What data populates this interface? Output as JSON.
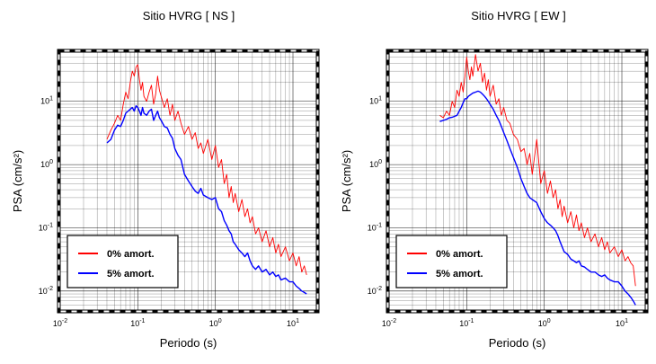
{
  "chart_data": [
    {
      "type": "line",
      "title": "Sitio HVRG [ NS ]",
      "xlabel": "Periodo (s)",
      "ylabel": "PSA (cm/s²)",
      "xscale": "log",
      "yscale": "log",
      "xlim": [
        0.01,
        20
      ],
      "ylim": [
        0.005,
        60
      ],
      "grid": true,
      "legend_position": "bottom-left",
      "x_ticks": [
        {
          "value": 0.01,
          "mantissa": "10",
          "exp": "-2"
        },
        {
          "value": 0.1,
          "mantissa": "10",
          "exp": "-1"
        },
        {
          "value": 1,
          "mantissa": "10",
          "exp": "0"
        },
        {
          "value": 10,
          "mantissa": "10",
          "exp": "1"
        }
      ],
      "y_ticks": [
        {
          "value": 0.01,
          "mantissa": "10",
          "exp": "-2"
        },
        {
          "value": 0.1,
          "mantissa": "10",
          "exp": "-1"
        },
        {
          "value": 1,
          "mantissa": "10",
          "exp": "0"
        },
        {
          "value": 10,
          "mantissa": "10",
          "exp": "1"
        }
      ],
      "series": [
        {
          "name": "0% amort.",
          "color": "#ff0000",
          "x": [
            0.04,
            0.045,
            0.05,
            0.055,
            0.06,
            0.065,
            0.07,
            0.075,
            0.08,
            0.085,
            0.09,
            0.095,
            0.1,
            0.105,
            0.11,
            0.115,
            0.12,
            0.13,
            0.14,
            0.15,
            0.16,
            0.17,
            0.18,
            0.19,
            0.2,
            0.22,
            0.24,
            0.26,
            0.28,
            0.3,
            0.33,
            0.36,
            0.4,
            0.45,
            0.5,
            0.55,
            0.6,
            0.65,
            0.7,
            0.8,
            0.9,
            1.0,
            1.1,
            1.2,
            1.3,
            1.4,
            1.5,
            1.6,
            1.7,
            1.8,
            2.0,
            2.2,
            2.4,
            2.6,
            2.8,
            3.0,
            3.3,
            3.6,
            4.0,
            4.5,
            5.0,
            5.5,
            6.0,
            6.5,
            7.0,
            8.0,
            9.0,
            10.0,
            11.0,
            12.0,
            13.0,
            14.0,
            15.0
          ],
          "y": [
            2.5,
            3.5,
            4.5,
            6.0,
            5.0,
            9.0,
            14.0,
            11.0,
            20.0,
            30.0,
            25.0,
            35.0,
            38.0,
            22.0,
            15.0,
            20.0,
            12.0,
            10.0,
            14.0,
            18.0,
            9.0,
            13.0,
            25.0,
            15.0,
            12.0,
            8.0,
            11.0,
            6.0,
            9.0,
            5.0,
            7.0,
            4.5,
            3.0,
            4.0,
            2.5,
            3.2,
            1.8,
            2.2,
            1.5,
            2.5,
            1.2,
            2.0,
            0.9,
            1.2,
            0.5,
            0.7,
            0.3,
            0.45,
            0.25,
            0.35,
            0.18,
            0.28,
            0.15,
            0.2,
            0.12,
            0.15,
            0.08,
            0.1,
            0.06,
            0.09,
            0.05,
            0.07,
            0.04,
            0.055,
            0.035,
            0.05,
            0.03,
            0.04,
            0.025,
            0.035,
            0.02,
            0.025,
            0.018
          ]
        },
        {
          "name": "5% amort.",
          "color": "#0000ff",
          "x": [
            0.04,
            0.045,
            0.05,
            0.055,
            0.06,
            0.065,
            0.07,
            0.075,
            0.08,
            0.085,
            0.09,
            0.095,
            0.1,
            0.105,
            0.11,
            0.115,
            0.12,
            0.13,
            0.14,
            0.15,
            0.16,
            0.17,
            0.18,
            0.19,
            0.2,
            0.22,
            0.24,
            0.26,
            0.28,
            0.3,
            0.33,
            0.36,
            0.4,
            0.45,
            0.5,
            0.55,
            0.6,
            0.65,
            0.7,
            0.8,
            0.9,
            1.0,
            1.1,
            1.2,
            1.3,
            1.4,
            1.5,
            1.6,
            1.7,
            1.8,
            2.0,
            2.2,
            2.4,
            2.6,
            2.8,
            3.0,
            3.3,
            3.6,
            4.0,
            4.5,
            5.0,
            5.5,
            6.0,
            6.5,
            7.0,
            8.0,
            9.0,
            10.0,
            11.0,
            12.0,
            13.0,
            14.0,
            15.0
          ],
          "y": [
            2.2,
            2.5,
            3.5,
            4.2,
            4.0,
            5.0,
            6.5,
            7.0,
            7.5,
            8.0,
            7.0,
            8.5,
            8.0,
            7.0,
            6.0,
            8.0,
            6.5,
            6.0,
            7.0,
            7.5,
            5.0,
            6.0,
            7.0,
            5.5,
            5.0,
            4.0,
            3.8,
            3.0,
            2.6,
            1.8,
            1.4,
            1.2,
            0.7,
            0.55,
            0.45,
            0.38,
            0.35,
            0.42,
            0.33,
            0.3,
            0.28,
            0.3,
            0.2,
            0.18,
            0.13,
            0.11,
            0.09,
            0.08,
            0.06,
            0.055,
            0.045,
            0.04,
            0.035,
            0.04,
            0.03,
            0.025,
            0.022,
            0.025,
            0.02,
            0.022,
            0.018,
            0.02,
            0.017,
            0.018,
            0.015,
            0.016,
            0.014,
            0.014,
            0.012,
            0.011,
            0.01,
            0.0095,
            0.009
          ]
        }
      ]
    },
    {
      "type": "line",
      "title": "Sitio HVRG [ EW ]",
      "xlabel": "Periodo (s)",
      "ylabel": "PSA (cm/s²)",
      "xscale": "log",
      "yscale": "log",
      "xlim": [
        0.01,
        20
      ],
      "ylim": [
        0.005,
        60
      ],
      "grid": true,
      "legend_position": "bottom-left",
      "x_ticks": [
        {
          "value": 0.01,
          "mantissa": "10",
          "exp": "-2"
        },
        {
          "value": 0.1,
          "mantissa": "10",
          "exp": "-1"
        },
        {
          "value": 1,
          "mantissa": "10",
          "exp": "0"
        },
        {
          "value": 10,
          "mantissa": "10",
          "exp": "1"
        }
      ],
      "y_ticks": [
        {
          "value": 0.01,
          "mantissa": "10",
          "exp": "-2"
        },
        {
          "value": 0.1,
          "mantissa": "10",
          "exp": "-1"
        },
        {
          "value": 1,
          "mantissa": "10",
          "exp": "0"
        },
        {
          "value": 10,
          "mantissa": "10",
          "exp": "1"
        }
      ],
      "series": [
        {
          "name": "0% amort.",
          "color": "#ff0000",
          "x": [
            0.045,
            0.05,
            0.055,
            0.06,
            0.065,
            0.07,
            0.075,
            0.08,
            0.085,
            0.09,
            0.095,
            0.1,
            0.105,
            0.11,
            0.115,
            0.12,
            0.13,
            0.14,
            0.15,
            0.16,
            0.17,
            0.18,
            0.19,
            0.2,
            0.22,
            0.24,
            0.26,
            0.28,
            0.3,
            0.33,
            0.36,
            0.4,
            0.45,
            0.5,
            0.55,
            0.6,
            0.65,
            0.7,
            0.8,
            0.9,
            1.0,
            1.1,
            1.2,
            1.3,
            1.4,
            1.5,
            1.6,
            1.7,
            1.8,
            2.0,
            2.2,
            2.4,
            2.6,
            2.8,
            3.0,
            3.3,
            3.6,
            4.0,
            4.5,
            5.0,
            5.5,
            6.0,
            6.5,
            7.0,
            8.0,
            9.0,
            10.0,
            11.0,
            12.0,
            13.0,
            14.0,
            15.0
          ],
          "y": [
            6.0,
            5.5,
            7.0,
            6.0,
            10.0,
            8.0,
            15.0,
            12.0,
            20.0,
            14.0,
            25.0,
            50.0,
            30.0,
            22.0,
            35.0,
            25.0,
            55.0,
            30.0,
            40.0,
            20.0,
            28.0,
            15.0,
            22.0,
            12.0,
            18.0,
            9.0,
            11.0,
            6.0,
            8.0,
            5.0,
            4.5,
            3.0,
            2.5,
            1.6,
            1.8,
            1.0,
            1.5,
            0.7,
            2.5,
            0.5,
            0.8,
            0.35,
            0.55,
            0.3,
            0.4,
            0.2,
            0.28,
            0.15,
            0.22,
            0.12,
            0.18,
            0.1,
            0.16,
            0.09,
            0.12,
            0.07,
            0.1,
            0.06,
            0.08,
            0.05,
            0.07,
            0.045,
            0.06,
            0.04,
            0.05,
            0.035,
            0.045,
            0.03,
            0.035,
            0.028,
            0.025,
            0.012
          ]
        },
        {
          "name": "5% amort.",
          "color": "#0000ff",
          "x": [
            0.045,
            0.05,
            0.055,
            0.06,
            0.065,
            0.07,
            0.075,
            0.08,
            0.085,
            0.09,
            0.095,
            0.1,
            0.105,
            0.11,
            0.115,
            0.12,
            0.13,
            0.14,
            0.15,
            0.16,
            0.17,
            0.18,
            0.19,
            0.2,
            0.22,
            0.24,
            0.26,
            0.28,
            0.3,
            0.33,
            0.36,
            0.4,
            0.45,
            0.5,
            0.55,
            0.6,
            0.65,
            0.7,
            0.8,
            0.9,
            1.0,
            1.1,
            1.2,
            1.3,
            1.4,
            1.5,
            1.6,
            1.7,
            1.8,
            2.0,
            2.2,
            2.4,
            2.6,
            2.8,
            3.0,
            3.3,
            3.6,
            4.0,
            4.5,
            5.0,
            5.5,
            6.0,
            6.5,
            7.0,
            8.0,
            9.0,
            10.0,
            11.0,
            12.0,
            13.0,
            14.0,
            15.0
          ],
          "y": [
            4.8,
            5.0,
            5.2,
            5.5,
            5.6,
            5.8,
            6.0,
            7.0,
            8.0,
            9.5,
            11.0,
            11.0,
            12.0,
            12.5,
            13.0,
            13.5,
            14.0,
            14.5,
            14.0,
            13.0,
            12.0,
            11.0,
            10.0,
            9.0,
            7.5,
            6.0,
            5.0,
            4.0,
            3.2,
            2.4,
            1.8,
            1.3,
            0.9,
            0.6,
            0.45,
            0.35,
            0.3,
            0.28,
            0.25,
            0.18,
            0.14,
            0.12,
            0.11,
            0.1,
            0.09,
            0.075,
            0.06,
            0.05,
            0.042,
            0.038,
            0.032,
            0.03,
            0.028,
            0.03,
            0.025,
            0.024,
            0.022,
            0.02,
            0.02,
            0.018,
            0.017,
            0.018,
            0.016,
            0.015,
            0.014,
            0.014,
            0.012,
            0.01,
            0.009,
            0.008,
            0.007,
            0.006
          ]
        }
      ]
    }
  ]
}
